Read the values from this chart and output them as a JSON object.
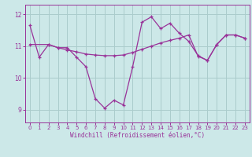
{
  "background_color": "#cce8e8",
  "grid_color": "#aacccc",
  "line_color": "#993399",
  "xlim": [
    -0.5,
    23.5
  ],
  "ylim": [
    8.6,
    12.3
  ],
  "yticks": [
    9,
    10,
    11,
    12
  ],
  "xticks": [
    0,
    1,
    2,
    3,
    4,
    5,
    6,
    7,
    8,
    9,
    10,
    11,
    12,
    13,
    14,
    15,
    16,
    17,
    18,
    19,
    20,
    21,
    22,
    23
  ],
  "xlabel": "Windchill (Refroidissement éolien,°C)",
  "curve1_x": [
    0,
    1,
    2,
    3,
    4,
    5,
    6,
    7,
    8,
    9,
    10,
    11,
    12,
    13,
    14,
    15,
    16,
    17,
    18,
    19,
    20,
    21,
    22,
    23
  ],
  "curve1_y": [
    11.65,
    10.65,
    11.05,
    10.95,
    10.95,
    10.65,
    10.35,
    9.35,
    9.05,
    9.3,
    9.15,
    10.35,
    11.75,
    11.92,
    11.55,
    11.72,
    11.4,
    11.15,
    10.7,
    10.55,
    11.05,
    11.35,
    11.35,
    11.25
  ],
  "curve2_x": [
    0,
    2,
    3,
    4,
    5,
    6,
    7,
    8,
    9,
    10,
    11,
    12,
    13,
    14,
    15,
    16,
    17,
    18,
    19,
    20,
    21,
    22,
    23
  ],
  "curve2_y": [
    11.05,
    11.05,
    10.95,
    10.88,
    10.82,
    10.75,
    10.72,
    10.7,
    10.7,
    10.72,
    10.8,
    10.9,
    11.0,
    11.1,
    11.18,
    11.25,
    11.35,
    10.68,
    10.55,
    11.05,
    11.35,
    11.35,
    11.25
  ],
  "marker_size": 3,
  "line_width": 0.9
}
